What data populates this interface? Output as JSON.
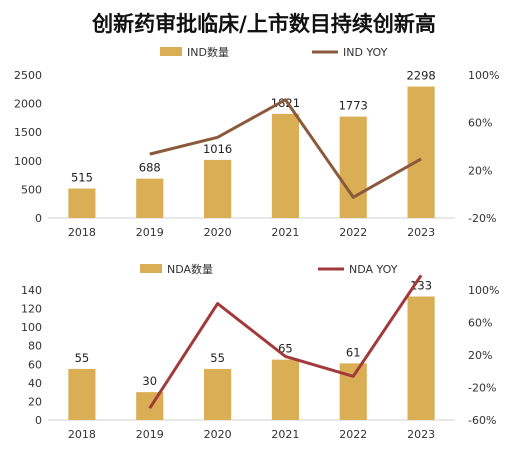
{
  "title": "创新药审批临床/上市数目持续创新高",
  "colors": {
    "bar": "#D9AE55",
    "line_top": "#8B5A3C",
    "line_bottom": "#A23A3A"
  },
  "chart_data": [
    {
      "type": "bar",
      "categories": [
        "2018",
        "2019",
        "2020",
        "2021",
        "2022",
        "2023"
      ],
      "series": [
        {
          "name": "IND数量",
          "type": "bar",
          "axis": "left",
          "values": [
            515,
            688,
            1016,
            1821,
            1773,
            2298
          ],
          "data_labels": [
            "515",
            "688",
            "1016",
            "1821",
            "1773",
            "2298"
          ]
        },
        {
          "name": "IND YOY",
          "type": "line",
          "axis": "right",
          "values": [
            null,
            0.336,
            0.477,
            0.792,
            -0.026,
            0.296
          ]
        }
      ],
      "y_left": {
        "min": 0,
        "max": 2500,
        "ticks": [
          "0",
          "500",
          "1000",
          "1500",
          "2000",
          "2500"
        ]
      },
      "y_right": {
        "min": -0.2,
        "max": 1.0,
        "ticks": [
          "-20%",
          "20%",
          "60%",
          "100%"
        ]
      },
      "legend_position": "top"
    },
    {
      "type": "bar",
      "categories": [
        "2018",
        "2019",
        "2020",
        "2021",
        "2022",
        "2023"
      ],
      "series": [
        {
          "name": "NDA数量",
          "type": "bar",
          "axis": "left",
          "values": [
            55,
            30,
            55,
            65,
            61,
            133
          ],
          "data_labels": [
            "55",
            "30",
            "55",
            "65",
            "61",
            "133"
          ]
        },
        {
          "name": "NDA  YOY",
          "type": "line",
          "axis": "right",
          "values": [
            null,
            -0.455,
            0.833,
            0.182,
            -0.062,
            1.18
          ]
        }
      ],
      "y_left": {
        "min": 0,
        "max": 140,
        "ticks": [
          "0",
          "20",
          "40",
          "60",
          "80",
          "100",
          "120",
          "140"
        ]
      },
      "y_right": {
        "min": -0.6,
        "max": 1.0,
        "ticks": [
          "-60%",
          "-20%",
          "20%",
          "60%",
          "100%"
        ]
      },
      "legend_position": "top"
    }
  ]
}
